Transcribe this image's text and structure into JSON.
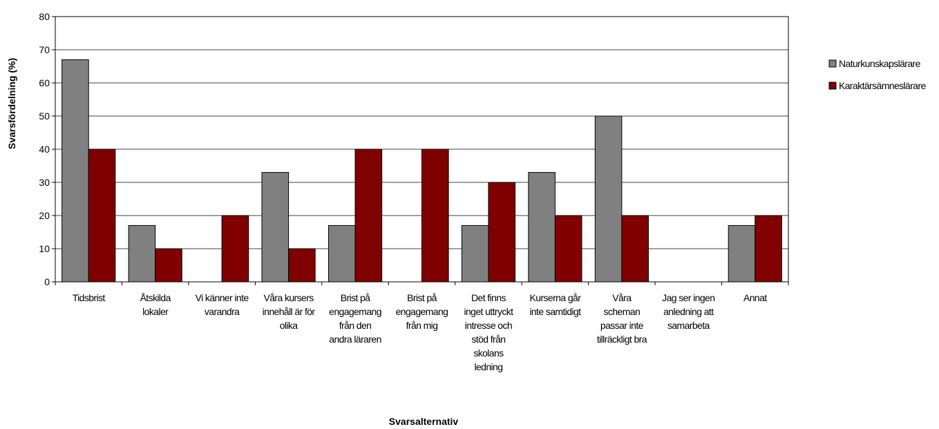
{
  "chart_data": {
    "type": "bar",
    "title": "",
    "xlabel": "Svarsalternativ",
    "ylabel": "Svarsfördelning (%)",
    "ylim": [
      0,
      80
    ],
    "yticks": [
      0,
      10,
      20,
      30,
      40,
      50,
      60,
      70,
      80
    ],
    "grid": true,
    "legend_position": "right",
    "categories": [
      [
        "Tidsbrist"
      ],
      [
        "Åtskilda",
        "lokaler"
      ],
      [
        "Vi känner inte",
        "varandra"
      ],
      [
        "Våra kursers",
        "innehåll är för",
        "olika"
      ],
      [
        "Brist på",
        "engagemang",
        "från den",
        "andra läraren"
      ],
      [
        "Brist på",
        "engagemang",
        "från mig"
      ],
      [
        "Det finns",
        "inget uttryckt",
        "intresse och",
        "stöd från",
        "skolans",
        "ledning"
      ],
      [
        "Kurserna går",
        "inte samtidigt"
      ],
      [
        "Våra",
        "scheman",
        "passar inte",
        "tillräckligt bra"
      ],
      [
        "Jag ser ingen",
        "anledning att",
        "samarbeta"
      ],
      [
        "Annat"
      ]
    ],
    "series": [
      {
        "name": "Naturkunskapslärare",
        "color": "#808080",
        "values": [
          67,
          17,
          0,
          33,
          17,
          0,
          17,
          33,
          50,
          0,
          17
        ]
      },
      {
        "name": "Karaktärsämneslärare",
        "color": "#800000",
        "values": [
          40,
          10,
          20,
          10,
          40,
          40,
          30,
          20,
          20,
          0,
          20
        ]
      }
    ]
  }
}
